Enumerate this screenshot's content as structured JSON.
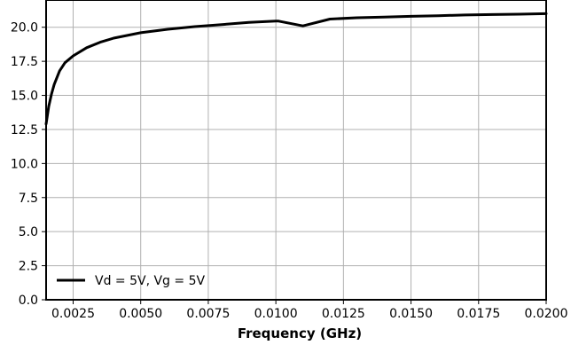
{
  "chart_data": {
    "type": "line",
    "title": "",
    "xlabel": "Frequency (GHz)",
    "ylabel": "",
    "xlim": [
      0.0015,
      0.02
    ],
    "ylim": [
      0,
      22
    ],
    "grid": true,
    "legend_position": "bottom-left",
    "x_ticks": [
      0.0025,
      0.005,
      0.0075,
      0.01,
      0.0125,
      0.015,
      0.0175,
      0.02
    ],
    "x_tick_labels": [
      "0.0025",
      "0.0050",
      "0.0075",
      "0.0100",
      "0.0125",
      "0.0150",
      "0.0175",
      "0.0200"
    ],
    "y_ticks": [
      0,
      2.5,
      5,
      7.5,
      10,
      12.5,
      15,
      17.5,
      20
    ],
    "y_tick_labels": [
      "0.0",
      "2.5",
      "5.0",
      "7.5",
      "10.0",
      "12.5",
      "15.0",
      "17.5",
      "20.0"
    ],
    "series": [
      {
        "name": "Vd = 5V, Vg = 5V",
        "color": "#000000",
        "x": [
          0.0015,
          0.0016,
          0.0017,
          0.0018,
          0.002,
          0.0022,
          0.0025,
          0.003,
          0.0035,
          0.004,
          0.005,
          0.006,
          0.007,
          0.008,
          0.009,
          0.01,
          0.0101,
          0.011,
          0.012,
          0.013,
          0.014,
          0.015,
          0.016,
          0.017,
          0.018,
          0.019,
          0.02
        ],
        "y": [
          12.9,
          14.2,
          15.1,
          15.8,
          16.8,
          17.4,
          17.9,
          18.5,
          18.9,
          19.2,
          19.6,
          19.85,
          20.05,
          20.2,
          20.35,
          20.45,
          20.45,
          20.1,
          20.6,
          20.7,
          20.75,
          20.8,
          20.85,
          20.9,
          20.93,
          20.96,
          21.0
        ]
      }
    ]
  }
}
